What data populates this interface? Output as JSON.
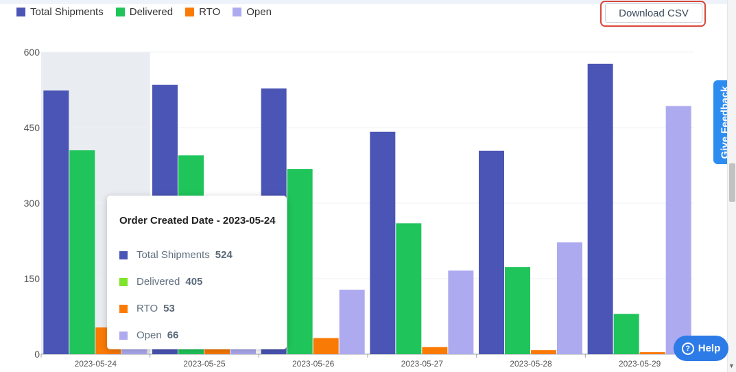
{
  "download_label": "Download CSV",
  "feedback_label": "Give Feedback",
  "help_label": "Help",
  "help_icon": "?",
  "colors": {
    "total": "#4b55b5",
    "delivered": "#1fc55b",
    "rto": "#fa7a06",
    "open": "#adaaf0",
    "tooltip_delivered": "#7ee52a",
    "highlight_band": "#e9edf1",
    "grid": "#eef0f3"
  },
  "chart_data": {
    "type": "bar",
    "categories": [
      "2023-05-24",
      "2023-05-25",
      "2023-05-26",
      "2023-05-27",
      "2023-05-28",
      "2023-05-29"
    ],
    "series": [
      {
        "name": "Total Shipments",
        "color": "#4b55b5",
        "values": [
          524,
          535,
          528,
          442,
          404,
          577
        ]
      },
      {
        "name": "Delivered",
        "color": "#1fc55b",
        "values": [
          405,
          395,
          368,
          260,
          173,
          80
        ]
      },
      {
        "name": "RTO",
        "color": "#fa7a06",
        "values": [
          53,
          38,
          32,
          14,
          8,
          4
        ]
      },
      {
        "name": "Open",
        "color": "#adaaf0",
        "values": [
          66,
          102,
          128,
          166,
          222,
          493
        ]
      }
    ],
    "yticks": [
      0,
      150,
      300,
      450,
      600
    ],
    "ylim": [
      0,
      600
    ],
    "highlighted_category": "2023-05-24",
    "legend_position": "top-left"
  },
  "tooltip": {
    "title": "Order Created Date - 2023-05-24",
    "rows": [
      {
        "label": "Total Shipments",
        "value": "524",
        "color": "#4b55b5"
      },
      {
        "label": "Delivered",
        "value": "405",
        "color": "#7ee52a"
      },
      {
        "label": "RTO",
        "value": "53",
        "color": "#fa7a06"
      },
      {
        "label": "Open",
        "value": "66",
        "color": "#adaaf0"
      }
    ]
  }
}
